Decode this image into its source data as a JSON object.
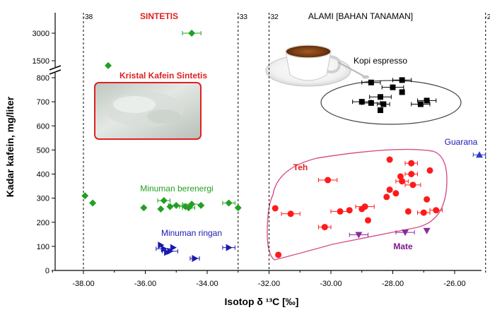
{
  "chart_data": {
    "type": "scatter",
    "xlabel": "Isotop δ ¹³C [‰]",
    "ylabel": "Kadar kafein, mg/liter",
    "xlim": [
      -39.3,
      -24.5
    ],
    "ylim_lower": [
      0,
      800
    ],
    "ylim_upper_ticks": [
      1500,
      3000
    ],
    "y_axis_break": true,
    "grid": false,
    "x_ticks": [
      "-38.00",
      "-36.00",
      "-34.00",
      "-32.00",
      "-30.00",
      "-28.00",
      "-26.00"
    ],
    "y_ticks": [
      "0",
      "100",
      "200",
      "300",
      "400",
      "500",
      "600",
      "700",
      "800",
      "1500",
      "3000"
    ],
    "top_ticks": [
      "-38",
      "-33",
      "-32",
      "-25"
    ],
    "vlines": [
      -38,
      -33,
      -32,
      -25
    ],
    "regions": [
      {
        "label": "SINTETIS",
        "color": "#e02020"
      },
      {
        "label": "ALAMI [BAHAN TANAMAN]",
        "color": "#000000"
      }
    ],
    "annotations": [
      {
        "text": "Kristal Kafein Sintetis",
        "color": "#e02020"
      },
      {
        "text": "Kopi espresso",
        "color": "#000000"
      },
      {
        "text": "Minuman berenergi",
        "color": "#22a022"
      },
      {
        "text": "Minuman ringan",
        "color": "#1a1ab0"
      },
      {
        "text": "Teh",
        "color": "#e02020"
      },
      {
        "text": "Mate",
        "color": "#7a1a8a"
      },
      {
        "text": "Guarana",
        "color": "#1a1ab0"
      }
    ],
    "series": [
      {
        "name": "Kristal Kafein Sintetis",
        "marker": "diamond",
        "color": "#22a022",
        "points": [
          {
            "x": -34.5,
            "y": 3000,
            "xerr": 0.3
          },
          {
            "x": -37.2,
            "y": 1300
          }
        ]
      },
      {
        "name": "Minuman berenergi",
        "marker": "diamond",
        "color": "#22a022",
        "points": [
          {
            "x": -37.95,
            "y": 310
          },
          {
            "x": -37.7,
            "y": 280
          },
          {
            "x": -36.05,
            "y": 260
          },
          {
            "x": -35.5,
            "y": 255
          },
          {
            "x": -35.4,
            "y": 290,
            "xerr": 0.2
          },
          {
            "x": -35.2,
            "y": 265
          },
          {
            "x": -35.0,
            "y": 270,
            "xerr": 0.25
          },
          {
            "x": -34.7,
            "y": 265,
            "xerr": 0.2
          },
          {
            "x": -34.6,
            "y": 260,
            "xerr": 0.2
          },
          {
            "x": -34.5,
            "y": 275,
            "xerr": 0.3
          },
          {
            "x": -34.2,
            "y": 270
          },
          {
            "x": -33.3,
            "y": 280,
            "xerr": 0.2
          },
          {
            "x": -33.0,
            "y": 260
          }
        ]
      },
      {
        "name": "Minuman ringan",
        "marker": "triangle-right",
        "color": "#1a1ab0",
        "points": [
          {
            "x": -35.5,
            "y": 105
          },
          {
            "x": -35.4,
            "y": 90,
            "xerr": 0.25
          },
          {
            "x": -35.3,
            "y": 75
          },
          {
            "x": -35.2,
            "y": 80,
            "xerr": 0.25
          },
          {
            "x": -35.1,
            "y": 95
          },
          {
            "x": -34.4,
            "y": 50,
            "xerr": 0.15
          },
          {
            "x": -33.3,
            "y": 95,
            "xerr": 0.2
          }
        ]
      },
      {
        "name": "Kopi espresso",
        "marker": "square",
        "color": "#000000",
        "points": [
          {
            "x": -28.7,
            "y": 780,
            "xerr": 0.3
          },
          {
            "x": -27.7,
            "y": 790,
            "xerr": 0.3
          },
          {
            "x": -28.0,
            "y": 760,
            "xerr": 0.35
          },
          {
            "x": -27.7,
            "y": 740
          },
          {
            "x": -28.4,
            "y": 720,
            "xerr": 0.35
          },
          {
            "x": -26.9,
            "y": 705,
            "xerr": 0.3
          },
          {
            "x": -29.0,
            "y": 700,
            "xerr": 0.3
          },
          {
            "x": -28.7,
            "y": 695,
            "xerr": 0.3
          },
          {
            "x": -28.3,
            "y": 690,
            "xerr": 0.2
          },
          {
            "x": -27.1,
            "y": 690,
            "xerr": 0.3
          },
          {
            "x": -28.4,
            "y": 665
          }
        ]
      },
      {
        "name": "Teh",
        "marker": "circle",
        "color": "#ff1a1a",
        "points": [
          {
            "x": -28.1,
            "y": 460
          },
          {
            "x": -27.4,
            "y": 445,
            "xerr": 0.2
          },
          {
            "x": -26.8,
            "y": 415
          },
          {
            "x": -27.4,
            "y": 400,
            "xerr": 0.2
          },
          {
            "x": -27.75,
            "y": 390
          },
          {
            "x": -30.1,
            "y": 375,
            "xerr": 0.3
          },
          {
            "x": -27.7,
            "y": 370,
            "xerr": 0.2
          },
          {
            "x": -27.35,
            "y": 355,
            "xerr": 0.25
          },
          {
            "x": -28.1,
            "y": 335
          },
          {
            "x": -27.9,
            "y": 320
          },
          {
            "x": -28.2,
            "y": 305
          },
          {
            "x": -26.9,
            "y": 295
          },
          {
            "x": -28.9,
            "y": 265,
            "xerr": 0.3
          },
          {
            "x": -29.0,
            "y": 255
          },
          {
            "x": -29.4,
            "y": 250
          },
          {
            "x": -29.7,
            "y": 245,
            "xerr": 0.3
          },
          {
            "x": -26.6,
            "y": 250,
            "xerr": 0.2
          },
          {
            "x": -27.5,
            "y": 245
          },
          {
            "x": -27.0,
            "y": 240,
            "xerr": 0.2
          },
          {
            "x": -31.8,
            "y": 258
          },
          {
            "x": -31.3,
            "y": 235,
            "xerr": 0.3
          },
          {
            "x": -28.8,
            "y": 208
          },
          {
            "x": -30.2,
            "y": 180,
            "xerr": 0.2
          },
          {
            "x": -31.7,
            "y": 65
          }
        ]
      },
      {
        "name": "Mate",
        "marker": "triangle-down",
        "color": "#8a2a9a",
        "points": [
          {
            "x": -29.1,
            "y": 148,
            "xerr": 0.3
          },
          {
            "x": -27.6,
            "y": 158,
            "xerr": 0.3
          },
          {
            "x": -26.9,
            "y": 165
          }
        ]
      },
      {
        "name": "Guarana",
        "marker": "triangle-up",
        "color": "#2a3acc",
        "points": [
          {
            "x": -25.2,
            "y": 480,
            "xerr": 0.2
          }
        ]
      }
    ]
  }
}
